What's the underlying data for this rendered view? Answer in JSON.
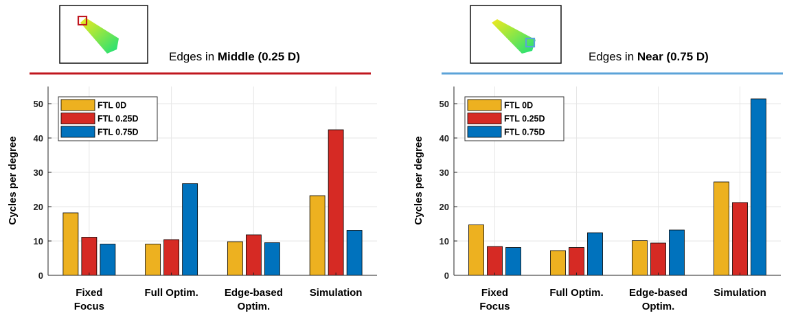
{
  "colors": {
    "ftl0": "#EDB120",
    "ftl025": "#D62A24",
    "ftl075": "#0072BD",
    "middleLine": "#C0161E",
    "nearLine": "#5BA3D8"
  },
  "chart_data": [
    {
      "type": "bar",
      "title_prefix": "Edges in ",
      "title_bold": "Middle (0.25 D)",
      "ylabel": "Cycles per degree",
      "ylim": [
        0,
        55
      ],
      "yticks": [
        "0",
        "10",
        "20",
        "30",
        "40",
        "50"
      ],
      "grid": true,
      "legend": "top-left",
      "categories": [
        [
          "Fixed",
          "Focus"
        ],
        [
          "Full Optim."
        ],
        [
          "Edge-based",
          "Optim."
        ],
        [
          "Simulation"
        ]
      ],
      "series": [
        {
          "name": "FTL 0D",
          "values": [
            18.2,
            9.1,
            9.8,
            23.2
          ]
        },
        {
          "name": "FTL 0.25D",
          "values": [
            11.1,
            10.4,
            11.8,
            42.4
          ]
        },
        {
          "name": "FTL 0.75D",
          "values": [
            9.1,
            26.7,
            9.5,
            13.1
          ]
        }
      ]
    },
    {
      "type": "bar",
      "title_prefix": "Edges in ",
      "title_bold": "Near (0.75 D)",
      "ylabel": "Cycles per degree",
      "ylim": [
        0,
        55
      ],
      "yticks": [
        "0",
        "10",
        "20",
        "30",
        "40",
        "50"
      ],
      "grid": true,
      "legend": "top-left",
      "categories": [
        [
          "Fixed",
          "Focus"
        ],
        [
          "Full Optim."
        ],
        [
          "Edge-based",
          "Optim."
        ],
        [
          "Simulation"
        ]
      ],
      "series": [
        {
          "name": "FTL 0D",
          "values": [
            14.7,
            7.2,
            10.1,
            27.2
          ]
        },
        {
          "name": "FTL 0.25D",
          "values": [
            8.4,
            8.1,
            9.4,
            21.2
          ]
        },
        {
          "name": "FTL 0.75D",
          "values": [
            8.1,
            12.4,
            13.2,
            51.4
          ]
        }
      ]
    }
  ]
}
